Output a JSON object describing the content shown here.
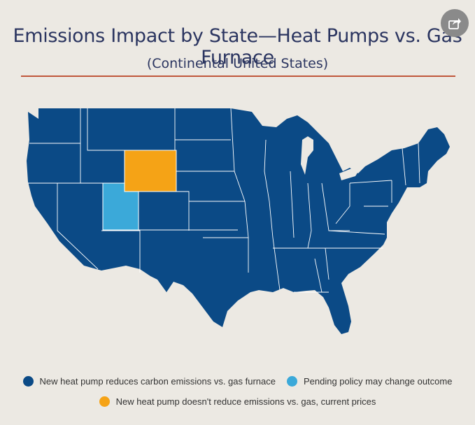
{
  "title": "Emissions Impact by State—Heat Pumps vs. Gas Furnace",
  "subtitle": "(Continental United States)",
  "share_icon": "share-icon",
  "colors": {
    "reduces": "#0B4A86",
    "pending": "#3BA9D9",
    "no_reduction": "#F5A316",
    "state_border": "#FFFFFF",
    "rule": "#C0573B"
  },
  "legend": [
    {
      "key": "reduces",
      "label": "New heat pump reduces carbon emissions vs. gas furnace"
    },
    {
      "key": "pending",
      "label": "Pending policy may change outcome"
    },
    {
      "key": "no_reduction",
      "label": "New heat pump doesn't reduce emissions vs. gas, current prices"
    }
  ],
  "map": {
    "region": "Continental United States",
    "state_categories": {
      "Utah": "pending",
      "Wyoming": "no_reduction",
      "all_other_states": "reduces"
    }
  }
}
